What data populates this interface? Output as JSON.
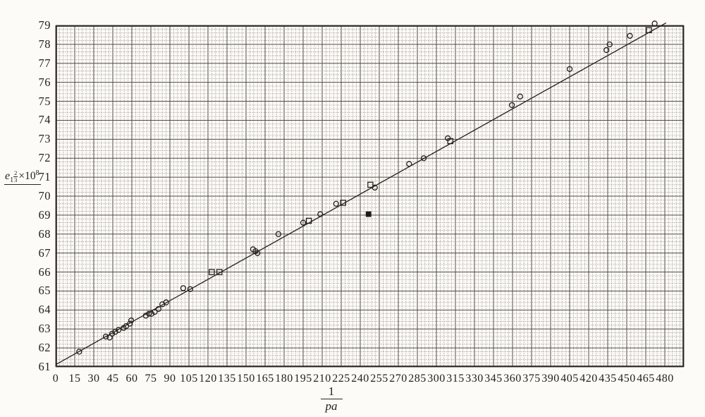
{
  "figure": {
    "y_axis_label": {
      "base": "e",
      "sub": "1",
      "sup_num": "2",
      "sup_den": "3",
      "times": "×10",
      "exp": "8"
    },
    "x_axis_label": {
      "num": "1",
      "den": "pa"
    }
  },
  "chart_data": {
    "type": "scatter",
    "title": "",
    "xlabel": "1/pa",
    "ylabel": "e1^(2/3) × 10^8",
    "xlim": [
      0,
      495
    ],
    "ylim": [
      61,
      79
    ],
    "grid": "fine graph paper, 5 minor squares per major division, grid on",
    "legend": "none",
    "x_tick_step": 15,
    "x_ticks": [
      0,
      15,
      30,
      45,
      60,
      75,
      90,
      105,
      120,
      135,
      150,
      165,
      180,
      195,
      210,
      225,
      240,
      255,
      270,
      285,
      300,
      315,
      330,
      345,
      360,
      375,
      390,
      405,
      420,
      435,
      450,
      465,
      480
    ],
    "y_ticks": [
      79,
      78,
      77,
      76,
      75,
      74,
      73,
      72,
      71,
      70,
      69,
      68,
      67,
      66,
      65,
      64,
      63,
      62,
      61
    ],
    "line": {
      "intercept": 61.12,
      "slope": 0.03745,
      "x_start": 0,
      "x_end": 481
    },
    "points": [
      {
        "x": 18.5,
        "y": 61.8,
        "marker": "circle"
      },
      {
        "x": 39.5,
        "y": 62.6,
        "marker": "circle"
      },
      {
        "x": 42.5,
        "y": 62.55,
        "marker": "circle"
      },
      {
        "x": 44.5,
        "y": 62.75,
        "marker": "circle"
      },
      {
        "x": 47,
        "y": 62.85,
        "marker": "circle"
      },
      {
        "x": 49.5,
        "y": 62.95,
        "marker": "circle"
      },
      {
        "x": 53.5,
        "y": 63.05,
        "marker": "circle"
      },
      {
        "x": 55.5,
        "y": 63.15,
        "marker": "circle"
      },
      {
        "x": 58.5,
        "y": 63.28,
        "marker": "circle"
      },
      {
        "x": 59.5,
        "y": 63.45,
        "marker": "circle"
      },
      {
        "x": 71,
        "y": 63.7,
        "marker": "circle"
      },
      {
        "x": 73.5,
        "y": 63.8,
        "marker": "circle"
      },
      {
        "x": 75.5,
        "y": 63.8,
        "marker": "circle"
      },
      {
        "x": 78,
        "y": 63.9,
        "marker": "circle"
      },
      {
        "x": 81,
        "y": 64.05,
        "marker": "circle"
      },
      {
        "x": 84,
        "y": 64.3,
        "marker": "circle"
      },
      {
        "x": 87,
        "y": 64.4,
        "marker": "circle"
      },
      {
        "x": 100.5,
        "y": 65.15,
        "marker": "circle"
      },
      {
        "x": 106,
        "y": 65.1,
        "marker": "circle"
      },
      {
        "x": 123,
        "y": 66.0,
        "marker": "square"
      },
      {
        "x": 129,
        "y": 66.0,
        "marker": "square"
      },
      {
        "x": 155.5,
        "y": 67.2,
        "marker": "circle"
      },
      {
        "x": 157.5,
        "y": 67.1,
        "marker": "circle"
      },
      {
        "x": 159,
        "y": 67.0,
        "marker": "circle"
      },
      {
        "x": 175.5,
        "y": 68.0,
        "marker": "circle"
      },
      {
        "x": 195,
        "y": 68.6,
        "marker": "circle"
      },
      {
        "x": 199.5,
        "y": 68.7,
        "marker": "square"
      },
      {
        "x": 208.5,
        "y": 69.05,
        "marker": "circle"
      },
      {
        "x": 221,
        "y": 69.6,
        "marker": "circle"
      },
      {
        "x": 226.5,
        "y": 69.65,
        "marker": "square"
      },
      {
        "x": 246.5,
        "y": 69.05,
        "marker": "solid-square"
      },
      {
        "x": 248,
        "y": 70.6,
        "marker": "square"
      },
      {
        "x": 251.5,
        "y": 70.45,
        "marker": "circle"
      },
      {
        "x": 278.5,
        "y": 71.7,
        "marker": "circle"
      },
      {
        "x": 290,
        "y": 72.0,
        "marker": "circle"
      },
      {
        "x": 309,
        "y": 73.05,
        "marker": "circle"
      },
      {
        "x": 311,
        "y": 72.9,
        "marker": "square"
      },
      {
        "x": 359.5,
        "y": 74.8,
        "marker": "circle"
      },
      {
        "x": 366,
        "y": 75.25,
        "marker": "circle"
      },
      {
        "x": 405,
        "y": 76.7,
        "marker": "circle"
      },
      {
        "x": 434,
        "y": 77.7,
        "marker": "circle"
      },
      {
        "x": 436.5,
        "y": 78.0,
        "marker": "circle"
      },
      {
        "x": 452.5,
        "y": 78.45,
        "marker": "circle"
      },
      {
        "x": 467.5,
        "y": 78.75,
        "marker": "square"
      },
      {
        "x": 472,
        "y": 79.1,
        "marker": "circle"
      }
    ]
  }
}
